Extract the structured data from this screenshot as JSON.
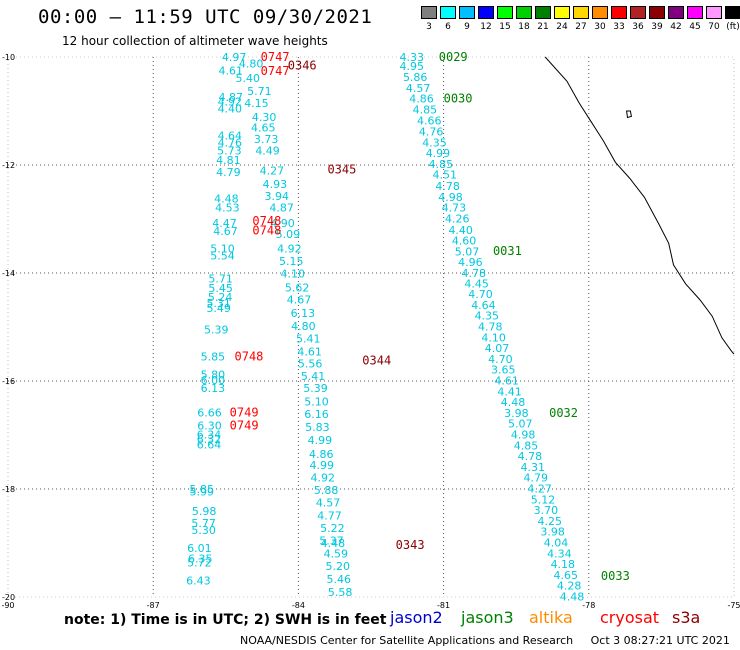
{
  "header": {
    "title": "00:00 – 11:59 UTC 09/30/2021",
    "subtitle": "12 hour collection of altimeter wave heights"
  },
  "colorbar": {
    "labels": [
      "3",
      "6",
      "9",
      "12",
      "15",
      "18",
      "21",
      "24",
      "27",
      "30",
      "33",
      "36",
      "39",
      "42",
      "45",
      "70",
      "(ft)"
    ],
    "colors": [
      "#7f7f7f",
      "#00ffff",
      "#00bfff",
      "#0000ff",
      "#00ff00",
      "#00d000",
      "#008000",
      "#ffff00",
      "#ffd700",
      "#ff8c00",
      "#ff0000",
      "#b22222",
      "#8b0000",
      "#800080",
      "#ff00ff",
      "#ff99ff",
      "#000000"
    ]
  },
  "footer": {
    "note": "note:  1) Time is in UTC;  2) SWH is in feet",
    "credit": "NOAA/NESDIS Center for Satellite Applications and Research",
    "timestamp": "Oct  3 08:27:21 UTC 2021"
  },
  "legend": [
    {
      "name": "jason2",
      "color": "#0000cc"
    },
    {
      "name": "jason3",
      "color": "#008000"
    },
    {
      "name": "altika",
      "color": "#ff8c00"
    },
    {
      "name": "cryosat",
      "color": "#ff0000"
    },
    {
      "name": "s3a",
      "color": "#8b0000"
    }
  ],
  "chart_data": {
    "type": "scatter",
    "xlim": [
      -90,
      -75
    ],
    "ylim": [
      -20,
      -10
    ],
    "x_ticks": [
      "-90",
      "-87",
      "-84",
      "-81",
      "-78",
      "-75"
    ],
    "y_ticks": [
      "-10",
      "-12",
      "-14",
      "-16",
      "-18",
      "-20"
    ],
    "grid": true,
    "swh_color": "#00c8e0",
    "swh_points": [
      {
        "lon": -85.58,
        "lat": -10.0,
        "v": "4.97"
      },
      {
        "lon": -85.23,
        "lat": -10.12,
        "v": "4.80"
      },
      {
        "lon": -85.65,
        "lat": -10.25,
        "v": "4.61"
      },
      {
        "lon": -85.3,
        "lat": -10.39,
        "v": "5.40"
      },
      {
        "lon": -85.06,
        "lat": -10.63,
        "v": "5.71"
      },
      {
        "lon": -85.65,
        "lat": -10.74,
        "v": "4.87"
      },
      {
        "lon": -85.67,
        "lat": -10.82,
        "v": "4.92"
      },
      {
        "lon": -85.12,
        "lat": -10.85,
        "v": "4.15"
      },
      {
        "lon": -85.67,
        "lat": -10.95,
        "v": "4.40"
      },
      {
        "lon": -84.96,
        "lat": -11.11,
        "v": "4.30"
      },
      {
        "lon": -84.98,
        "lat": -11.31,
        "v": "4.65"
      },
      {
        "lon": -85.67,
        "lat": -11.45,
        "v": "4.64"
      },
      {
        "lon": -84.92,
        "lat": -11.52,
        "v": "3.73"
      },
      {
        "lon": -85.67,
        "lat": -11.58,
        "v": "4.76"
      },
      {
        "lon": -85.68,
        "lat": -11.73,
        "v": "5.73"
      },
      {
        "lon": -84.89,
        "lat": -11.73,
        "v": "4.49"
      },
      {
        "lon": -85.7,
        "lat": -11.91,
        "v": "4.81"
      },
      {
        "lon": -84.8,
        "lat": -12.1,
        "v": "4.27"
      },
      {
        "lon": -85.7,
        "lat": -12.13,
        "v": "4.79"
      },
      {
        "lon": -84.74,
        "lat": -12.35,
        "v": "4.93"
      },
      {
        "lon": -84.7,
        "lat": -12.57,
        "v": "3.94"
      },
      {
        "lon": -85.74,
        "lat": -12.62,
        "v": "4.48"
      },
      {
        "lon": -85.72,
        "lat": -12.79,
        "v": "4.53"
      },
      {
        "lon": -84.6,
        "lat": -12.79,
        "v": "4.87"
      },
      {
        "lon": -85.78,
        "lat": -13.07,
        "v": "4.47"
      },
      {
        "lon": -84.58,
        "lat": -13.07,
        "v": "4.90"
      },
      {
        "lon": -85.76,
        "lat": -13.22,
        "v": "4.67"
      },
      {
        "lon": -84.47,
        "lat": -13.28,
        "v": "5.09"
      },
      {
        "lon": -85.82,
        "lat": -13.55,
        "v": "5.10"
      },
      {
        "lon": -84.44,
        "lat": -13.55,
        "v": "4.92"
      },
      {
        "lon": -85.82,
        "lat": -13.68,
        "v": "5.54"
      },
      {
        "lon": -84.4,
        "lat": -13.78,
        "v": "5.15"
      },
      {
        "lon": -84.37,
        "lat": -14.01,
        "v": "4.10"
      },
      {
        "lon": -85.86,
        "lat": -14.1,
        "v": "5.71"
      },
      {
        "lon": -85.86,
        "lat": -14.28,
        "v": "5.45"
      },
      {
        "lon": -84.28,
        "lat": -14.27,
        "v": "5.62"
      },
      {
        "lon": -85.87,
        "lat": -14.44,
        "v": "5.24"
      },
      {
        "lon": -84.24,
        "lat": -14.49,
        "v": "4.67"
      },
      {
        "lon": -85.9,
        "lat": -14.56,
        "v": "5.31"
      },
      {
        "lon": -85.9,
        "lat": -14.65,
        "v": "5.49"
      },
      {
        "lon": -84.16,
        "lat": -14.74,
        "v": "6.13"
      },
      {
        "lon": -84.15,
        "lat": -14.98,
        "v": "4.80"
      },
      {
        "lon": -85.95,
        "lat": -15.05,
        "v": "5.39"
      },
      {
        "lon": -84.05,
        "lat": -15.21,
        "v": "5.41"
      },
      {
        "lon": -84.02,
        "lat": -15.45,
        "v": "4.61"
      },
      {
        "lon": -86.02,
        "lat": -15.55,
        "v": "5.85"
      },
      {
        "lon": -84.01,
        "lat": -15.68,
        "v": "5.56"
      },
      {
        "lon": -86.02,
        "lat": -15.88,
        "v": "5.80"
      },
      {
        "lon": -86.02,
        "lat": -15.98,
        "v": "6.00"
      },
      {
        "lon": -83.95,
        "lat": -15.91,
        "v": "5.41"
      },
      {
        "lon": -83.9,
        "lat": -16.13,
        "v": "5.39"
      },
      {
        "lon": -86.02,
        "lat": -16.13,
        "v": "6.13"
      },
      {
        "lon": -83.88,
        "lat": -16.38,
        "v": "5.10"
      },
      {
        "lon": -86.09,
        "lat": -16.58,
        "v": "6.66"
      },
      {
        "lon": -83.88,
        "lat": -16.61,
        "v": "6.16"
      },
      {
        "lon": -86.09,
        "lat": -16.82,
        "v": "6.30"
      },
      {
        "lon": -83.86,
        "lat": -16.85,
        "v": "5.83"
      },
      {
        "lon": -86.1,
        "lat": -16.99,
        "v": "6.34"
      },
      {
        "lon": -86.1,
        "lat": -17.07,
        "v": "6.32"
      },
      {
        "lon": -83.81,
        "lat": -17.09,
        "v": "4.99"
      },
      {
        "lon": -86.1,
        "lat": -17.18,
        "v": "6.64"
      },
      {
        "lon": -83.78,
        "lat": -17.35,
        "v": "4.86"
      },
      {
        "lon": -83.77,
        "lat": -17.56,
        "v": "4.99"
      },
      {
        "lon": -83.75,
        "lat": -17.79,
        "v": "4.92"
      },
      {
        "lon": -86.25,
        "lat": -18.0,
        "v": "5.85"
      },
      {
        "lon": -86.25,
        "lat": -18.05,
        "v": "5.99"
      },
      {
        "lon": -83.68,
        "lat": -18.02,
        "v": "5.88"
      },
      {
        "lon": -83.64,
        "lat": -18.25,
        "v": "4.57"
      },
      {
        "lon": -86.2,
        "lat": -18.41,
        "v": "5.98"
      },
      {
        "lon": -83.61,
        "lat": -18.49,
        "v": "4.77"
      },
      {
        "lon": -86.21,
        "lat": -18.63,
        "v": "5.77"
      },
      {
        "lon": -86.21,
        "lat": -18.76,
        "v": "5.30"
      },
      {
        "lon": -83.55,
        "lat": -18.72,
        "v": "5.22"
      },
      {
        "lon": -83.57,
        "lat": -18.95,
        "v": "5.37"
      },
      {
        "lon": -83.54,
        "lat": -19.0,
        "v": "4.48"
      },
      {
        "lon": -83.48,
        "lat": -19.19,
        "v": "4.59"
      },
      {
        "lon": -86.3,
        "lat": -19.09,
        "v": "6.01"
      },
      {
        "lon": -86.28,
        "lat": -19.29,
        "v": "6.35"
      },
      {
        "lon": -86.3,
        "lat": -19.36,
        "v": "5.72"
      },
      {
        "lon": -83.44,
        "lat": -19.43,
        "v": "5.20"
      },
      {
        "lon": -83.42,
        "lat": -19.67,
        "v": "5.46"
      },
      {
        "lon": -86.32,
        "lat": -19.69,
        "v": "6.43"
      },
      {
        "lon": -83.39,
        "lat": -19.91,
        "v": "5.58"
      },
      {
        "lon": -81.91,
        "lat": -10.0,
        "v": "4.33"
      },
      {
        "lon": -81.91,
        "lat": -10.17,
        "v": "4.95"
      },
      {
        "lon": -81.84,
        "lat": -10.37,
        "v": "5.86"
      },
      {
        "lon": -81.78,
        "lat": -10.57,
        "v": "4.57"
      },
      {
        "lon": -81.71,
        "lat": -10.77,
        "v": "4.86"
      },
      {
        "lon": -81.64,
        "lat": -10.97,
        "v": "4.85"
      },
      {
        "lon": -81.55,
        "lat": -11.18,
        "v": "4.66"
      },
      {
        "lon": -81.51,
        "lat": -11.38,
        "v": "4.76"
      },
      {
        "lon": -81.44,
        "lat": -11.58,
        "v": "4.35"
      },
      {
        "lon": -81.37,
        "lat": -11.78,
        "v": "4.99"
      },
      {
        "lon": -81.31,
        "lat": -11.98,
        "v": "4.85"
      },
      {
        "lon": -81.23,
        "lat": -12.18,
        "v": "4.51"
      },
      {
        "lon": -81.17,
        "lat": -12.39,
        "v": "4.78"
      },
      {
        "lon": -81.11,
        "lat": -12.59,
        "v": "4.98"
      },
      {
        "lon": -81.04,
        "lat": -12.79,
        "v": "4.73"
      },
      {
        "lon": -80.97,
        "lat": -12.99,
        "v": "4.26"
      },
      {
        "lon": -80.9,
        "lat": -13.2,
        "v": "4.40"
      },
      {
        "lon": -80.83,
        "lat": -13.4,
        "v": "4.60"
      },
      {
        "lon": -80.77,
        "lat": -13.6,
        "v": "5.07"
      },
      {
        "lon": -80.7,
        "lat": -13.8,
        "v": "4.96"
      },
      {
        "lon": -80.63,
        "lat": -14.0,
        "v": "4.78"
      },
      {
        "lon": -80.57,
        "lat": -14.19,
        "v": "4.45"
      },
      {
        "lon": -80.49,
        "lat": -14.39,
        "v": "4.70"
      },
      {
        "lon": -80.43,
        "lat": -14.59,
        "v": "4.64"
      },
      {
        "lon": -80.36,
        "lat": -14.79,
        "v": "4.35"
      },
      {
        "lon": -80.29,
        "lat": -14.99,
        "v": "4.78"
      },
      {
        "lon": -80.22,
        "lat": -15.19,
        "v": "4.10"
      },
      {
        "lon": -80.15,
        "lat": -15.39,
        "v": "4.07"
      },
      {
        "lon": -80.08,
        "lat": -15.59,
        "v": "4.70"
      },
      {
        "lon": -80.02,
        "lat": -15.79,
        "v": "3.65"
      },
      {
        "lon": -79.95,
        "lat": -15.99,
        "v": "4.61"
      },
      {
        "lon": -79.89,
        "lat": -16.19,
        "v": "4.41"
      },
      {
        "lon": -79.82,
        "lat": -16.39,
        "v": "4.48"
      },
      {
        "lon": -79.75,
        "lat": -16.59,
        "v": "3.98"
      },
      {
        "lon": -79.67,
        "lat": -16.79,
        "v": "5.07"
      },
      {
        "lon": -79.61,
        "lat": -16.99,
        "v": "4.98"
      },
      {
        "lon": -79.55,
        "lat": -17.19,
        "v": "4.85"
      },
      {
        "lon": -79.47,
        "lat": -17.39,
        "v": "4.78"
      },
      {
        "lon": -79.41,
        "lat": -17.59,
        "v": "4.31"
      },
      {
        "lon": -79.35,
        "lat": -17.79,
        "v": "4.79"
      },
      {
        "lon": -79.27,
        "lat": -17.99,
        "v": "4.27"
      },
      {
        "lon": -79.2,
        "lat": -18.19,
        "v": "5.12"
      },
      {
        "lon": -79.14,
        "lat": -18.39,
        "v": "3.70"
      },
      {
        "lon": -79.06,
        "lat": -18.59,
        "v": "4.25"
      },
      {
        "lon": -79.0,
        "lat": -18.79,
        "v": "3.98"
      },
      {
        "lon": -78.93,
        "lat": -18.99,
        "v": "4.04"
      },
      {
        "lon": -78.86,
        "lat": -19.19,
        "v": "4.34"
      },
      {
        "lon": -78.79,
        "lat": -19.39,
        "v": "4.18"
      },
      {
        "lon": -78.73,
        "lat": -19.59,
        "v": "4.65"
      },
      {
        "lon": -78.66,
        "lat": -19.79,
        "v": "4.28"
      },
      {
        "lon": -78.6,
        "lat": -19.99,
        "v": "4.48"
      }
    ],
    "time_labels": [
      {
        "lon": -84.78,
        "lat": -10.0,
        "t": "0747",
        "sat": "cryosat"
      },
      {
        "lon": -84.78,
        "lat": -10.26,
        "t": "0747",
        "sat": "cryosat"
      },
      {
        "lon": -84.22,
        "lat": -10.16,
        "t": "0346",
        "sat": "s3a"
      },
      {
        "lon": -83.4,
        "lat": -12.08,
        "t": "0345",
        "sat": "s3a"
      },
      {
        "lon": -84.95,
        "lat": -13.04,
        "t": "0748",
        "sat": "cryosat"
      },
      {
        "lon": -84.95,
        "lat": -13.21,
        "t": "0748",
        "sat": "cryosat"
      },
      {
        "lon": -85.32,
        "lat": -15.55,
        "t": "0748",
        "sat": "cryosat"
      },
      {
        "lon": -82.68,
        "lat": -15.62,
        "t": "0344",
        "sat": "s3a"
      },
      {
        "lon": -85.42,
        "lat": -16.58,
        "t": "0749",
        "sat": "cryosat"
      },
      {
        "lon": -85.42,
        "lat": -16.82,
        "t": "0749",
        "sat": "cryosat"
      },
      {
        "lon": -81.99,
        "lat": -19.04,
        "t": "0343",
        "sat": "s3a"
      },
      {
        "lon": -81.1,
        "lat": -10.0,
        "t": "0029",
        "sat": "jason3"
      },
      {
        "lon": -81.0,
        "lat": -10.77,
        "t": "0030",
        "sat": "jason3"
      },
      {
        "lon": -79.98,
        "lat": -13.59,
        "t": "0031",
        "sat": "jason3"
      },
      {
        "lon": -78.82,
        "lat": -16.59,
        "t": "0032",
        "sat": "jason3"
      },
      {
        "lon": -77.75,
        "lat": -19.61,
        "t": "0033",
        "sat": "jason3"
      }
    ],
    "coastline": [
      [
        -78.9,
        -10.0
      ],
      [
        -78.45,
        -10.45
      ],
      [
        -78.2,
        -10.85
      ],
      [
        -77.95,
        -11.2
      ],
      [
        -77.7,
        -11.55
      ],
      [
        -77.45,
        -11.95
      ],
      [
        -77.15,
        -12.25
      ],
      [
        -76.85,
        -12.6
      ],
      [
        -76.55,
        -13.1
      ],
      [
        -76.35,
        -13.45
      ],
      [
        -76.25,
        -13.85
      ],
      [
        -76.0,
        -14.2
      ],
      [
        -75.7,
        -14.5
      ],
      [
        -75.45,
        -14.8
      ],
      [
        -75.25,
        -15.2
      ],
      [
        -75.05,
        -15.45
      ],
      [
        -75.0,
        -15.5
      ]
    ],
    "islands": [
      [
        [
          -77.22,
          -11.0
        ],
        [
          -77.14,
          -11.0
        ],
        [
          -77.12,
          -11.1
        ],
        [
          -77.2,
          -11.12
        ],
        [
          -77.22,
          -11.0
        ]
      ]
    ]
  }
}
